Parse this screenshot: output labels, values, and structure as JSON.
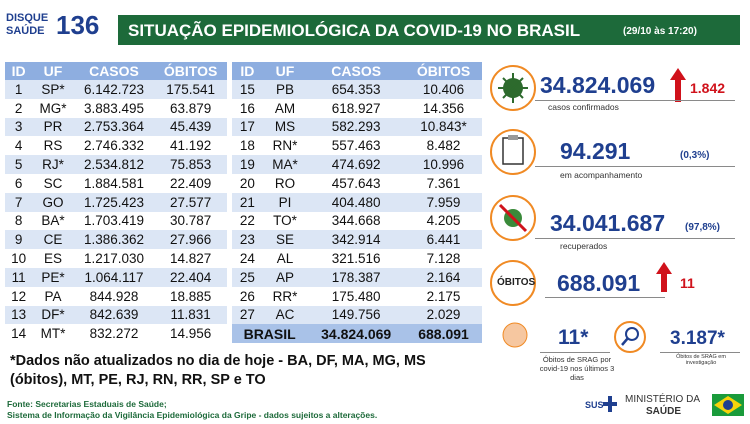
{
  "header": {
    "logo_top": "DISQUE",
    "logo_bottom": "SAÚDE",
    "logo_number": "136",
    "title": "SITUAÇÃO EPIDEMIOLÓGICA DA COVID-19 NO BRASIL",
    "timestamp": "(29/10 às 17:20)"
  },
  "table_left": {
    "columns": [
      "ID",
      "UF",
      "CASOS",
      "ÓBITOS"
    ],
    "rows": [
      [
        "1",
        "SP*",
        "6.142.723",
        "175.541"
      ],
      [
        "2",
        "MG*",
        "3.883.495",
        "63.879"
      ],
      [
        "3",
        "PR",
        "2.753.364",
        "45.439"
      ],
      [
        "4",
        "RS",
        "2.746.332",
        "41.192"
      ],
      [
        "5",
        "RJ*",
        "2.534.812",
        "75.853"
      ],
      [
        "6",
        "SC",
        "1.884.581",
        "22.409"
      ],
      [
        "7",
        "GO",
        "1.725.423",
        "27.577"
      ],
      [
        "8",
        "BA*",
        "1.703.419",
        "30.787"
      ],
      [
        "9",
        "CE",
        "1.386.362",
        "27.966"
      ],
      [
        "10",
        "ES",
        "1.217.030",
        "14.827"
      ],
      [
        "11",
        "PE*",
        "1.064.117",
        "22.404"
      ],
      [
        "12",
        "PA",
        "844.928",
        "18.885"
      ],
      [
        "13",
        "DF*",
        "842.639",
        "11.831"
      ],
      [
        "14",
        "MT*",
        "832.272",
        "14.956"
      ]
    ]
  },
  "table_right": {
    "columns": [
      "ID",
      "UF",
      "CASOS",
      "ÓBITOS"
    ],
    "rows": [
      [
        "15",
        "PB",
        "654.353",
        "10.406"
      ],
      [
        "16",
        "AM",
        "618.927",
        "14.356"
      ],
      [
        "17",
        "MS",
        "582.293",
        "10.843*"
      ],
      [
        "18",
        "RN*",
        "557.463",
        "8.482"
      ],
      [
        "19",
        "MA*",
        "474.692",
        "10.996"
      ],
      [
        "20",
        "RO",
        "457.643",
        "7.361"
      ],
      [
        "21",
        "PI",
        "404.480",
        "7.959"
      ],
      [
        "22",
        "TO*",
        "344.668",
        "4.205"
      ],
      [
        "23",
        "SE",
        "342.914",
        "6.441"
      ],
      [
        "24",
        "AL",
        "321.516",
        "7.128"
      ],
      [
        "25",
        "AP",
        "178.387",
        "2.164"
      ],
      [
        "26",
        "RR*",
        "175.480",
        "2.175"
      ],
      [
        "27",
        "AC",
        "149.756",
        "2.029"
      ]
    ],
    "total": [
      "BRASIL",
      "34.824.069",
      "688.091"
    ]
  },
  "stats": {
    "confirmed": {
      "value": "34.824.069",
      "new": "1.842",
      "label": "casos confirmados"
    },
    "monitoring": {
      "value": "94.291",
      "percent": "(0,3%)",
      "label": "em acompanhamento"
    },
    "recovered": {
      "value": "34.041.687",
      "percent": "(97,8%)",
      "label": "recuperados"
    },
    "deaths": {
      "icon_label": "ÓBITOS",
      "value": "688.091",
      "new": "11"
    },
    "srag_recent": {
      "value": "11*",
      "label": "Óbitos de SRAG por covid-19 nos últimos 3 dias"
    },
    "srag_investigation": {
      "value": "3.187*",
      "label": "Óbitos de SRAG em investigação"
    }
  },
  "footnote": "*Dados não atualizados no dia de hoje - BA, DF, MA, MG, MS (óbitos), MT, PE, RJ, RN, RR, SP e TO",
  "sources": [
    "Fonte: Secretarias Estaduais de Saúde;",
    "Sistema de Informação da Vigilância Epidemiológica da Gripe - dados sujeitos a alterações."
  ],
  "footer": {
    "sus": "SUS",
    "ministry_top": "MINISTÉRIO DA",
    "ministry_bottom": "SAÚDE"
  }
}
